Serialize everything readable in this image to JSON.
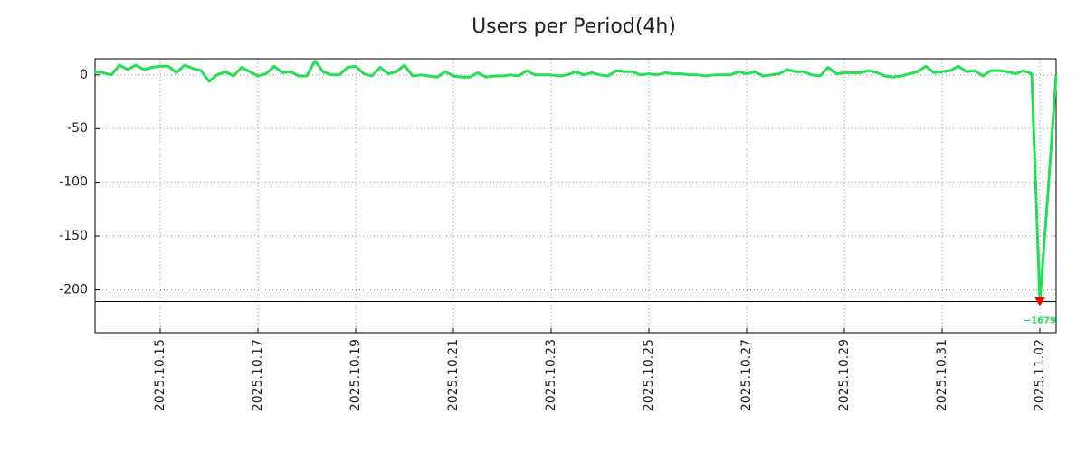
{
  "chart_data": {
    "type": "line",
    "title": "Users per Period(4h)",
    "x": [
      "2025-10-13 16:00",
      "2025-10-13 20:00",
      "2025-10-14 00:00",
      "2025-10-14 04:00",
      "2025-10-14 08:00",
      "2025-10-14 12:00",
      "2025-10-14 16:00",
      "2025-10-14 20:00",
      "2025-10-15 00:00",
      "2025-10-15 04:00",
      "2025-10-15 08:00",
      "2025-10-15 12:00",
      "2025-10-15 16:00",
      "2025-10-15 20:00",
      "2025-10-16 00:00",
      "2025-10-16 04:00",
      "2025-10-16 08:00",
      "2025-10-16 12:00",
      "2025-10-16 16:00",
      "2025-10-16 20:00",
      "2025-10-17 00:00",
      "2025-10-17 04:00",
      "2025-10-17 08:00",
      "2025-10-17 12:00",
      "2025-10-17 16:00",
      "2025-10-17 20:00",
      "2025-10-18 00:00",
      "2025-10-18 04:00",
      "2025-10-18 08:00",
      "2025-10-18 12:00",
      "2025-10-18 16:00",
      "2025-10-18 20:00",
      "2025-10-19 00:00",
      "2025-10-19 04:00",
      "2025-10-19 08:00",
      "2025-10-19 12:00",
      "2025-10-19 16:00",
      "2025-10-19 20:00",
      "2025-10-20 00:00",
      "2025-10-20 04:00",
      "2025-10-20 08:00",
      "2025-10-20 12:00",
      "2025-10-20 16:00",
      "2025-10-20 20:00",
      "2025-10-21 00:00",
      "2025-10-21 04:00",
      "2025-10-21 08:00",
      "2025-10-21 12:00",
      "2025-10-21 16:00",
      "2025-10-21 20:00",
      "2025-10-22 00:00",
      "2025-10-22 04:00",
      "2025-10-22 08:00",
      "2025-10-22 12:00",
      "2025-10-22 16:00",
      "2025-10-22 20:00",
      "2025-10-23 00:00",
      "2025-10-23 04:00",
      "2025-10-23 08:00",
      "2025-10-23 12:00",
      "2025-10-23 16:00",
      "2025-10-23 20:00",
      "2025-10-24 00:00",
      "2025-10-24 04:00",
      "2025-10-24 08:00",
      "2025-10-24 12:00",
      "2025-10-24 16:00",
      "2025-10-24 20:00",
      "2025-10-25 00:00",
      "2025-10-25 04:00",
      "2025-10-25 08:00",
      "2025-10-25 12:00",
      "2025-10-25 16:00",
      "2025-10-25 20:00",
      "2025-10-26 00:00",
      "2025-10-26 04:00",
      "2025-10-26 08:00",
      "2025-10-26 12:00",
      "2025-10-26 16:00",
      "2025-10-26 20:00",
      "2025-10-27 00:00",
      "2025-10-27 04:00",
      "2025-10-27 08:00",
      "2025-10-27 12:00",
      "2025-10-27 16:00",
      "2025-10-27 20:00",
      "2025-10-28 00:00",
      "2025-10-28 04:00",
      "2025-10-28 08:00",
      "2025-10-28 12:00",
      "2025-10-28 16:00",
      "2025-10-28 20:00",
      "2025-10-29 00:00",
      "2025-10-29 04:00",
      "2025-10-29 08:00",
      "2025-10-29 12:00",
      "2025-10-29 16:00",
      "2025-10-29 20:00",
      "2025-10-30 00:00",
      "2025-10-30 04:00",
      "2025-10-30 08:00",
      "2025-10-30 12:00",
      "2025-10-30 16:00",
      "2025-10-30 20:00",
      "2025-10-31 00:00",
      "2025-10-31 04:00",
      "2025-10-31 08:00",
      "2025-10-31 12:00",
      "2025-10-31 16:00",
      "2025-10-31 20:00",
      "2025-11-01 00:00",
      "2025-11-01 04:00",
      "2025-11-01 08:00",
      "2025-11-01 12:00",
      "2025-11-01 16:00",
      "2025-11-01 20:00",
      "2025-11-02 00:00",
      "2025-11-02 04:00",
      "2025-11-02 08:00"
    ],
    "series": [
      {
        "name": "Users",
        "color": "#22e052",
        "values": [
          3,
          2,
          0,
          9,
          5,
          9,
          5,
          7,
          8,
          8,
          2,
          9,
          6,
          4,
          -6,
          0,
          3,
          -1,
          7,
          3,
          -1,
          1,
          8,
          2,
          3,
          -1,
          -1,
          13,
          3,
          0,
          0,
          7,
          8,
          1,
          -1,
          7,
          1,
          3,
          9,
          -1,
          0,
          -1,
          -2,
          3,
          -1,
          -2,
          -2,
          2,
          -2,
          -1,
          -1,
          0,
          -1,
          4,
          0,
          0,
          0,
          -1,
          0,
          3,
          0,
          2,
          0,
          -1,
          4,
          3,
          3,
          0,
          1,
          0,
          2,
          1,
          1,
          0,
          0,
          -1,
          0,
          0,
          0,
          3,
          1,
          3,
          -1,
          0,
          1,
          5,
          3,
          3,
          0,
          -1,
          7,
          1,
          2,
          2,
          2,
          4,
          2,
          -1,
          -2,
          -1,
          1,
          3,
          8,
          2,
          3,
          4,
          8,
          3,
          4,
          -1,
          4,
          4,
          3,
          1,
          4,
          1,
          -211,
          -110,
          0
        ]
      }
    ],
    "annotation": "−1679",
    "hline": -211,
    "xlim": [
      "2025-10-13 16:00",
      "2025-11-02 08:00"
    ],
    "xticks": [
      {
        "value": "2025-10-15 00:00",
        "label": "2025.10.15"
      },
      {
        "value": "2025-10-17 00:00",
        "label": "2025.10.17"
      },
      {
        "value": "2025-10-19 00:00",
        "label": "2025.10.19"
      },
      {
        "value": "2025-10-21 00:00",
        "label": "2025.10.21"
      },
      {
        "value": "2025-10-23 00:00",
        "label": "2025.10.23"
      },
      {
        "value": "2025-10-25 00:00",
        "label": "2025.10.25"
      },
      {
        "value": "2025-10-27 00:00",
        "label": "2025.10.27"
      },
      {
        "value": "2025-10-29 00:00",
        "label": "2025.10.29"
      },
      {
        "value": "2025-10-31 00:00",
        "label": "2025.10.31"
      },
      {
        "value": "2025-11-02 00:00",
        "label": "2025.11.02"
      }
    ],
    "ylim": [
      -240,
      15
    ],
    "yticks": [
      -200,
      -150,
      -100,
      -50,
      0
    ],
    "grid": true
  }
}
